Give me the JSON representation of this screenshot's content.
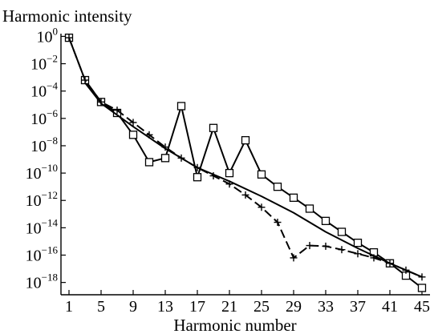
{
  "chart_data": {
    "type": "line",
    "title": "",
    "ylabel": "Harmonic intensity",
    "xlabel": "Harmonic number",
    "x_ticks": [
      1,
      5,
      9,
      13,
      17,
      21,
      25,
      29,
      33,
      37,
      41,
      45
    ],
    "y_ticks": [
      {
        "exp": 0,
        "base": "10",
        "sup": "0"
      },
      {
        "exp": -2,
        "base": "10",
        "sup": "−2"
      },
      {
        "exp": -4,
        "base": "10",
        "sup": "−4"
      },
      {
        "exp": -6,
        "base": "10",
        "sup": "−6"
      },
      {
        "exp": -8,
        "base": "10",
        "sup": "−8"
      },
      {
        "exp": -10,
        "base": "10",
        "sup": "−10"
      },
      {
        "exp": -12,
        "base": "10",
        "sup": "−12"
      },
      {
        "exp": -14,
        "base": "10",
        "sup": "−14"
      },
      {
        "exp": -16,
        "base": "10",
        "sup": "−16"
      },
      {
        "exp": -18,
        "base": "10",
        "sup": "−18"
      }
    ],
    "xlim": [
      0,
      46
    ],
    "ylim_log10": [
      -18.9,
      0.2
    ],
    "y_scale": "log",
    "grid": false,
    "series": [
      {
        "marker": "square",
        "line_style": "solid",
        "x": [
          1,
          3,
          5,
          7,
          9,
          11,
          13,
          15,
          17,
          19,
          21,
          23,
          25,
          27,
          29,
          31,
          33,
          35,
          37,
          39,
          41,
          43,
          45
        ],
        "log10_y": [
          -0.1,
          -3.2,
          -4.8,
          -5.6,
          -7.2,
          -9.2,
          -8.9,
          -5.1,
          -10.3,
          -6.7,
          -10.0,
          -7.6,
          -10.1,
          -11.0,
          -11.8,
          -12.6,
          -13.5,
          -14.3,
          -15.1,
          -15.8,
          -16.6,
          -17.5,
          -18.4
        ]
      },
      {
        "marker": "plus",
        "line_style": "dashed",
        "x": [
          1,
          3,
          5,
          7,
          9,
          11,
          13,
          15,
          17,
          19,
          21,
          23,
          25,
          27,
          29,
          31,
          33,
          35,
          37,
          39,
          41,
          43,
          45
        ],
        "log10_y": [
          -0.1,
          -3.2,
          -4.8,
          -5.4,
          -6.3,
          -7.2,
          -8.1,
          -8.9,
          -9.6,
          -10.2,
          -10.8,
          -11.6,
          -12.5,
          -13.6,
          -16.2,
          -15.3,
          -15.35,
          -15.6,
          -15.9,
          -16.2,
          -16.6,
          -17.1,
          -17.6
        ]
      },
      {
        "marker": "none",
        "line_style": "solid",
        "x": [
          3,
          5,
          9,
          13,
          17,
          21,
          25,
          29,
          33,
          37,
          41,
          45
        ],
        "log10_y": [
          -3.4,
          -4.9,
          -6.6,
          -8.2,
          -9.6,
          -10.6,
          -11.7,
          -12.9,
          -14.3,
          -15.5,
          -16.6,
          -17.6
        ]
      }
    ]
  }
}
